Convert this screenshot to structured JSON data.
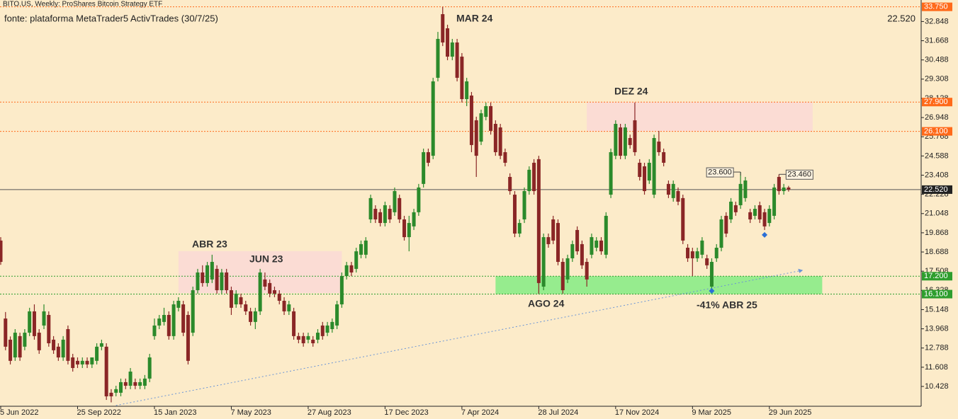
{
  "chart_data": {
    "type": "candlestick",
    "title": "BITO.US, Weekly:  ProShares Bitcoin Strategy ETF",
    "subtitle": "fonte: plataforma MetaTrader5 ActivTrades (30/7/25)",
    "up_color": "#2b8a2b",
    "down_color": "#8a2626",
    "ylim": [
      9.21,
      34.17
    ],
    "yticks": [
      32.848,
      31.668,
      30.488,
      29.308,
      28.128,
      26.948,
      25.768,
      24.588,
      23.408,
      22.228,
      21.048,
      19.868,
      18.688,
      17.508,
      16.328,
      15.148,
      13.968,
      12.788,
      11.608,
      10.428
    ],
    "xticks": [
      {
        "value": 0,
        "label": "5 Jun 2022"
      },
      {
        "value": 16,
        "label": "25 Sep 2022"
      },
      {
        "value": 32,
        "label": "15 Jan 2023"
      },
      {
        "value": 48,
        "label": "7 May 2023"
      },
      {
        "value": 64,
        "label": "27 Aug 2023"
      },
      {
        "value": 80,
        "label": "17 Dec 2023"
      },
      {
        "value": 96,
        "label": "7 Apr 2024"
      },
      {
        "value": 112,
        "label": "28 Jul 2024"
      },
      {
        "value": 128,
        "label": "17 Nov 2024"
      },
      {
        "value": 144,
        "label": "9 Mar 2025"
      },
      {
        "value": 160,
        "label": "29 Jun 2025"
      }
    ],
    "candles": [
      [
        19.39,
        19.6,
        17.9,
        18.08
      ],
      [
        14.6,
        15.0,
        12.65,
        12.87
      ],
      [
        13.3,
        13.5,
        11.78,
        12.0
      ],
      [
        12.21,
        13.95,
        12.0,
        13.73
      ],
      [
        13.52,
        13.73,
        12.0,
        12.21
      ],
      [
        12.87,
        13.95,
        12.65,
        13.73
      ],
      [
        13.73,
        15.26,
        13.52,
        15.04
      ],
      [
        15.04,
        15.47,
        13.3,
        13.52
      ],
      [
        13.73,
        13.95,
        12.43,
        12.65
      ],
      [
        14.17,
        15.47,
        13.95,
        15.04
      ],
      [
        14.82,
        15.04,
        12.87,
        13.08
      ],
      [
        13.3,
        13.52,
        12.43,
        12.65
      ],
      [
        12.87,
        13.08,
        12.0,
        12.21
      ],
      [
        12.21,
        13.52,
        12.0,
        13.3
      ],
      [
        13.95,
        14.17,
        11.78,
        12.0
      ],
      [
        12.21,
        12.43,
        11.34,
        11.56
      ],
      [
        12.0,
        12.21,
        11.56,
        11.78
      ],
      [
        11.78,
        12.21,
        11.56,
        12.0
      ],
      [
        12.0,
        12.21,
        11.56,
        11.78
      ],
      [
        11.78,
        12.21,
        11.56,
        12.21
      ],
      [
        12.0,
        13.08,
        11.78,
        12.87
      ],
      [
        12.87,
        13.3,
        12.65,
        13.08
      ],
      [
        12.87,
        13.08,
        9.6,
        9.82
      ],
      [
        10.04,
        10.26,
        9.45,
        9.82
      ],
      [
        10.04,
        10.47,
        9.82,
        10.26
      ],
      [
        10.04,
        10.91,
        9.82,
        10.69
      ],
      [
        10.69,
        10.91,
        10.26,
        10.47
      ],
      [
        10.47,
        11.56,
        10.26,
        11.34
      ],
      [
        10.69,
        10.91,
        10.26,
        10.47
      ],
      [
        10.47,
        10.91,
        10.26,
        10.69
      ],
      [
        10.47,
        11.13,
        10.26,
        10.91
      ],
      [
        10.91,
        12.43,
        10.69,
        12.21
      ],
      [
        13.52,
        14.6,
        13.3,
        14.17
      ],
      [
        14.17,
        14.82,
        13.95,
        14.6
      ],
      [
        14.39,
        15.26,
        14.17,
        14.82
      ],
      [
        14.82,
        15.04,
        13.3,
        13.52
      ],
      [
        13.52,
        15.69,
        13.3,
        15.47
      ],
      [
        15.26,
        15.91,
        15.04,
        15.69
      ],
      [
        15.47,
        15.69,
        13.52,
        13.73
      ],
      [
        14.82,
        15.04,
        11.78,
        12.0
      ],
      [
        13.73,
        16.56,
        13.52,
        16.34
      ],
      [
        16.34,
        17.65,
        16.13,
        17.43
      ],
      [
        17.43,
        17.87,
        16.56,
        16.78
      ],
      [
        16.78,
        18.08,
        16.56,
        17.87
      ],
      [
        17.0,
        18.52,
        16.78,
        18.08
      ],
      [
        17.65,
        17.87,
        16.13,
        16.34
      ],
      [
        16.34,
        17.65,
        16.13,
        17.43
      ],
      [
        17.43,
        17.65,
        16.13,
        16.34
      ],
      [
        16.34,
        16.56,
        14.82,
        15.26
      ],
      [
        15.47,
        16.34,
        15.26,
        16.13
      ],
      [
        15.91,
        16.13,
        15.26,
        15.47
      ],
      [
        15.47,
        15.69,
        14.82,
        15.04
      ],
      [
        15.04,
        15.26,
        14.17,
        14.39
      ],
      [
        14.39,
        15.26,
        13.95,
        15.04
      ],
      [
        15.04,
        17.65,
        14.82,
        17.43
      ],
      [
        17.0,
        17.43,
        16.34,
        16.56
      ],
      [
        16.78,
        17.0,
        15.91,
        16.13
      ],
      [
        16.34,
        16.56,
        15.91,
        16.13
      ],
      [
        16.13,
        16.34,
        15.47,
        15.69
      ],
      [
        15.69,
        15.91,
        14.82,
        15.04
      ],
      [
        15.04,
        15.69,
        14.82,
        15.47
      ],
      [
        15.04,
        15.26,
        13.3,
        13.52
      ],
      [
        13.52,
        13.73,
        13.08,
        13.3
      ],
      [
        13.52,
        13.73,
        12.87,
        13.08
      ],
      [
        13.3,
        13.73,
        13.08,
        13.52
      ],
      [
        13.3,
        13.52,
        12.87,
        13.08
      ],
      [
        13.3,
        13.95,
        13.08,
        13.73
      ],
      [
        14.17,
        14.39,
        13.3,
        13.52
      ],
      [
        13.73,
        14.39,
        13.52,
        14.17
      ],
      [
        13.95,
        14.6,
        13.73,
        14.39
      ],
      [
        14.17,
        15.69,
        13.95,
        15.47
      ],
      [
        15.47,
        17.43,
        15.26,
        17.21
      ],
      [
        17.21,
        18.08,
        17.0,
        17.87
      ],
      [
        17.87,
        18.08,
        17.21,
        17.43
      ],
      [
        17.65,
        18.95,
        17.43,
        18.73
      ],
      [
        18.52,
        19.39,
        18.3,
        19.17
      ],
      [
        18.52,
        19.6,
        18.3,
        19.39
      ],
      [
        20.69,
        22.21,
        20.47,
        22.0
      ],
      [
        21.34,
        21.56,
        20.47,
        20.69
      ],
      [
        21.13,
        21.34,
        20.26,
        20.47
      ],
      [
        20.47,
        21.78,
        20.26,
        21.56
      ],
      [
        21.34,
        21.56,
        20.47,
        20.69
      ],
      [
        21.13,
        22.65,
        20.91,
        22.43
      ],
      [
        22.0,
        22.21,
        20.47,
        20.69
      ],
      [
        20.69,
        20.91,
        19.39,
        19.6
      ],
      [
        19.6,
        20.91,
        18.73,
        20.47
      ],
      [
        20.26,
        21.34,
        20.04,
        21.13
      ],
      [
        21.13,
        22.87,
        20.91,
        22.65
      ],
      [
        22.87,
        25.04,
        22.65,
        24.82
      ],
      [
        24.82,
        25.04,
        23.95,
        24.17
      ],
      [
        24.6,
        29.39,
        24.39,
        29.17
      ],
      [
        29.39,
        32.21,
        29.17,
        31.78
      ],
      [
        33.3,
        33.75,
        31.34,
        31.56
      ],
      [
        32.43,
        32.65,
        30.47,
        30.69
      ],
      [
        30.69,
        31.78,
        30.47,
        31.56
      ],
      [
        31.56,
        31.78,
        29.17,
        29.39
      ],
      [
        30.69,
        30.91,
        27.87,
        28.08
      ],
      [
        28.08,
        29.39,
        27.65,
        29.17
      ],
      [
        28.3,
        28.52,
        24.82,
        25.26
      ],
      [
        26.78,
        27.0,
        23.3,
        24.6
      ],
      [
        25.47,
        27.43,
        25.26,
        27.21
      ],
      [
        26.99,
        27.87,
        26.78,
        27.65
      ],
      [
        27.65,
        27.87,
        25.9,
        26.13
      ],
      [
        26.56,
        26.78,
        24.6,
        24.82
      ],
      [
        26.34,
        26.56,
        24.39,
        24.6
      ],
      [
        24.82,
        25.04,
        23.95,
        24.17
      ],
      [
        23.3,
        23.52,
        22.21,
        22.43
      ],
      [
        22.21,
        22.43,
        19.6,
        19.82
      ],
      [
        19.82,
        20.69,
        19.6,
        20.47
      ],
      [
        20.69,
        22.65,
        20.47,
        22.43
      ],
      [
        22.43,
        23.95,
        22.21,
        23.74
      ],
      [
        24.17,
        24.39,
        22.21,
        22.43
      ],
      [
        24.39,
        24.6,
        16.13,
        16.78
      ],
      [
        16.56,
        19.82,
        16.34,
        19.6
      ],
      [
        19.6,
        19.82,
        18.95,
        19.17
      ],
      [
        20.69,
        20.91,
        19.17,
        19.39
      ],
      [
        20.47,
        20.69,
        17.87,
        18.08
      ],
      [
        18.08,
        18.3,
        16.13,
        16.34
      ],
      [
        17.0,
        18.52,
        16.78,
        18.3
      ],
      [
        18.3,
        19.39,
        18.08,
        19.17
      ],
      [
        20.04,
        20.26,
        18.52,
        18.73
      ],
      [
        19.17,
        19.39,
        17.65,
        17.87
      ],
      [
        18.08,
        18.3,
        16.56,
        17.0
      ],
      [
        18.52,
        19.82,
        18.3,
        19.6
      ],
      [
        18.95,
        19.6,
        18.73,
        19.39
      ],
      [
        19.39,
        19.6,
        18.52,
        18.73
      ],
      [
        18.52,
        21.13,
        18.3,
        20.91
      ],
      [
        22.21,
        25.04,
        22.0,
        24.82
      ],
      [
        24.6,
        26.78,
        24.39,
        26.56
      ],
      [
        26.34,
        26.56,
        24.39,
        24.6
      ],
      [
        24.6,
        26.56,
        24.39,
        26.34
      ],
      [
        25.69,
        25.9,
        25.04,
        25.26
      ],
      [
        26.78,
        27.87,
        24.6,
        24.82
      ],
      [
        24.17,
        24.39,
        23.08,
        23.3
      ],
      [
        23.95,
        24.17,
        22.21,
        22.43
      ],
      [
        23.08,
        24.39,
        22.87,
        24.17
      ],
      [
        22.21,
        25.9,
        22.0,
        25.69
      ],
      [
        25.47,
        26.13,
        24.6,
        24.82
      ],
      [
        24.82,
        25.04,
        23.95,
        24.17
      ],
      [
        22.87,
        23.08,
        22.0,
        22.21
      ],
      [
        22.0,
        23.08,
        21.78,
        22.87
      ],
      [
        22.43,
        22.65,
        21.56,
        21.78
      ],
      [
        22.0,
        22.21,
        19.17,
        19.39
      ],
      [
        18.95,
        19.17,
        18.08,
        18.3
      ],
      [
        18.73,
        18.95,
        17.21,
        18.3
      ],
      [
        18.3,
        18.95,
        18.08,
        18.73
      ],
      [
        18.52,
        19.6,
        18.3,
        19.39
      ],
      [
        18.3,
        18.52,
        17.65,
        17.87
      ],
      [
        16.56,
        18.3,
        16.13,
        18.08
      ],
      [
        18.3,
        19.17,
        18.08,
        18.95
      ],
      [
        18.95,
        20.91,
        18.73,
        20.69
      ],
      [
        20.91,
        21.13,
        19.6,
        19.82
      ],
      [
        20.69,
        22.0,
        20.47,
        21.78
      ],
      [
        21.56,
        21.78,
        20.91,
        21.13
      ],
      [
        21.56,
        23.6,
        21.34,
        22.87
      ],
      [
        22.0,
        23.3,
        21.78,
        23.08
      ],
      [
        21.13,
        21.34,
        20.47,
        20.69
      ],
      [
        20.91,
        21.56,
        20.69,
        21.34
      ],
      [
        21.56,
        21.78,
        20.47,
        20.69
      ],
      [
        21.13,
        21.34,
        20.04,
        20.26
      ],
      [
        20.47,
        21.56,
        20.26,
        21.34
      ],
      [
        20.91,
        22.87,
        20.69,
        22.65
      ],
      [
        23.3,
        23.46,
        22.21,
        22.43
      ],
      [
        22.43,
        22.87,
        22.21,
        22.65
      ],
      [
        22.65,
        22.75,
        22.4,
        22.52
      ]
    ],
    "levels": [
      {
        "value": 33.75,
        "label": "33.750",
        "color": "#ff6a1a"
      },
      {
        "value": 27.9,
        "label": "27.900",
        "color": "#ff6a1a"
      },
      {
        "value": 26.1,
        "label": "26.100",
        "color": "#ff6a1a"
      },
      {
        "value": 22.52,
        "label": "22.520",
        "color": "#222222"
      },
      {
        "value": 17.2,
        "label": "17.200",
        "color": "#2e9e2e"
      },
      {
        "value": 16.1,
        "label": "16.100",
        "color": "#2e9e2e"
      }
    ],
    "zones": [
      {
        "from": 37,
        "to": 71,
        "high": 18.74,
        "low": 16.17,
        "color": "#fbdcd4"
      },
      {
        "from": 122,
        "to": 169,
        "high": 27.9,
        "low": 26.1,
        "color": "#fbdcd4"
      },
      {
        "from": 103,
        "to": 171,
        "high": 17.2,
        "low": 16.1,
        "color": "#96ec8e"
      }
    ],
    "price_labels": [
      {
        "x": 154,
        "value": 23.6,
        "label": "23.600"
      },
      {
        "x": 162,
        "value": 23.46,
        "label": "23.460"
      }
    ],
    "trendline": {
      "x": [
        24,
        167
      ],
      "y": [
        9.26,
        17.57
      ],
      "color": "#6b95d6"
    },
    "markers": {
      "x": [
        148,
        159
      ],
      "y": [
        16.3,
        19.74
      ],
      "color": "#2a6fd6"
    },
    "annotations": [
      "MAR 24",
      "DEZ 24",
      "ABR 23",
      "JUN 23",
      "AGO 24",
      "-41% ABR 25"
    ]
  }
}
